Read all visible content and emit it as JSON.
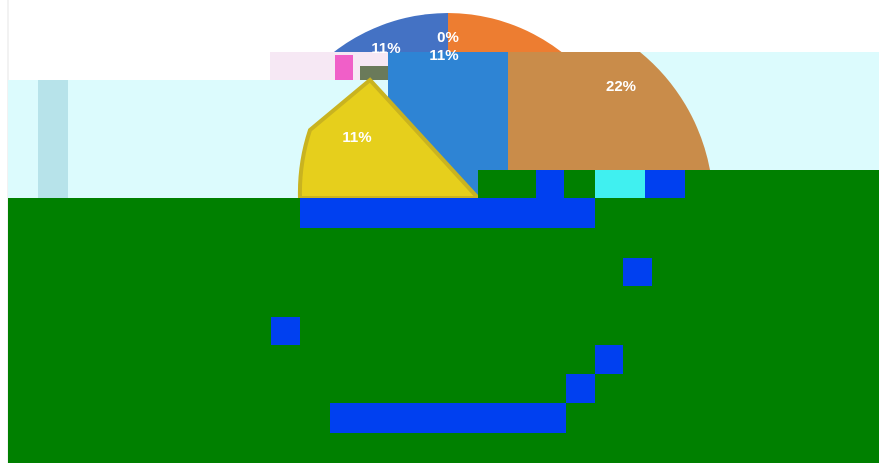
{
  "labels": [
    "11%",
    "0%",
    "11%",
    "22%",
    "11%"
  ]
}
